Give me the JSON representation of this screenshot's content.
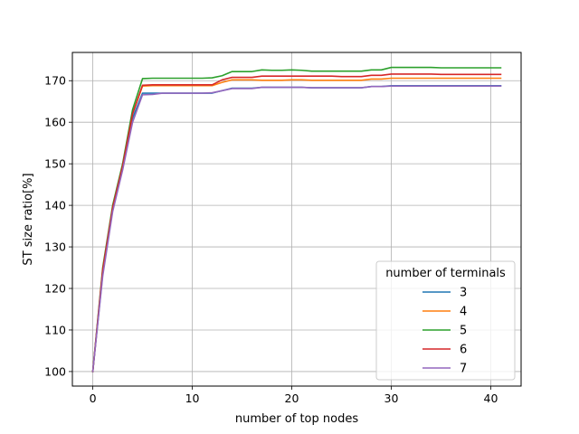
{
  "chart_data": {
    "type": "line",
    "xlabel": "number of top nodes",
    "ylabel": "ST size ratio[%]",
    "xlim": [
      -2.05,
      43.05
    ],
    "ylim": [
      96.5,
      176.8
    ],
    "xticks": [
      0,
      10,
      20,
      30,
      40
    ],
    "yticks": [
      100,
      110,
      120,
      130,
      140,
      150,
      160,
      170
    ],
    "grid": true,
    "legend": {
      "title": "number of terminals",
      "placement": "lower-right"
    },
    "series": [
      {
        "name": "3",
        "color": "#1f77b4",
        "points": [
          [
            0,
            100
          ],
          [
            1,
            123.5
          ],
          [
            2,
            139
          ],
          [
            3,
            149
          ],
          [
            4,
            161
          ],
          [
            5,
            167
          ],
          [
            6,
            167
          ],
          [
            7,
            167
          ],
          [
            8,
            167
          ],
          [
            9,
            167
          ],
          [
            10,
            167
          ],
          [
            11,
            167
          ],
          [
            12,
            167
          ],
          [
            13,
            167.6
          ],
          [
            14,
            168.2
          ],
          [
            15,
            168.2
          ],
          [
            16,
            168.2
          ],
          [
            17,
            168.4
          ],
          [
            18,
            168.4
          ],
          [
            19,
            168.4
          ],
          [
            20,
            168.4
          ],
          [
            21,
            168.4
          ],
          [
            22,
            168.3
          ],
          [
            23,
            168.3
          ],
          [
            24,
            168.3
          ],
          [
            25,
            168.3
          ],
          [
            26,
            168.3
          ],
          [
            27,
            168.3
          ],
          [
            28,
            168.6
          ],
          [
            29,
            168.6
          ],
          [
            30,
            168.8
          ],
          [
            31,
            168.8
          ],
          [
            32,
            168.8
          ],
          [
            33,
            168.8
          ],
          [
            34,
            168.8
          ],
          [
            35,
            168.8
          ],
          [
            36,
            168.8
          ],
          [
            37,
            168.8
          ],
          [
            38,
            168.8
          ],
          [
            39,
            168.8
          ],
          [
            40,
            168.8
          ],
          [
            41,
            168.8
          ]
        ]
      },
      {
        "name": "4",
        "color": "#ff7f0e",
        "points": [
          [
            0,
            100
          ],
          [
            1,
            124
          ],
          [
            2,
            139.5
          ],
          [
            3,
            149.5
          ],
          [
            4,
            162
          ],
          [
            5,
            168.7
          ],
          [
            6,
            168.8
          ],
          [
            7,
            168.8
          ],
          [
            8,
            168.8
          ],
          [
            9,
            168.8
          ],
          [
            10,
            168.8
          ],
          [
            11,
            168.8
          ],
          [
            12,
            168.8
          ],
          [
            13,
            169.6
          ],
          [
            14,
            170.2
          ],
          [
            15,
            170.2
          ],
          [
            16,
            170.2
          ],
          [
            17,
            170.1
          ],
          [
            18,
            170.1
          ],
          [
            19,
            170.1
          ],
          [
            20,
            170.2
          ],
          [
            21,
            170.2
          ],
          [
            22,
            170.1
          ],
          [
            23,
            170.1
          ],
          [
            24,
            170.1
          ],
          [
            25,
            170.1
          ],
          [
            26,
            170.1
          ],
          [
            27,
            170.1
          ],
          [
            28,
            170.4
          ],
          [
            29,
            170.4
          ],
          [
            30,
            170.6
          ],
          [
            31,
            170.6
          ],
          [
            32,
            170.6
          ],
          [
            33,
            170.6
          ],
          [
            34,
            170.6
          ],
          [
            35,
            170.6
          ],
          [
            36,
            170.6
          ],
          [
            37,
            170.6
          ],
          [
            38,
            170.6
          ],
          [
            39,
            170.6
          ],
          [
            40,
            170.6
          ],
          [
            41,
            170.6
          ]
        ]
      },
      {
        "name": "5",
        "color": "#2ca02c",
        "points": [
          [
            0,
            100
          ],
          [
            1,
            125
          ],
          [
            2,
            140
          ],
          [
            3,
            150
          ],
          [
            4,
            163
          ],
          [
            5,
            170.5
          ],
          [
            6,
            170.6
          ],
          [
            7,
            170.6
          ],
          [
            8,
            170.6
          ],
          [
            9,
            170.6
          ],
          [
            10,
            170.6
          ],
          [
            11,
            170.6
          ],
          [
            12,
            170.7
          ],
          [
            13,
            171.2
          ],
          [
            14,
            172.2
          ],
          [
            15,
            172.2
          ],
          [
            16,
            172.2
          ],
          [
            17,
            172.6
          ],
          [
            18,
            172.5
          ],
          [
            19,
            172.5
          ],
          [
            20,
            172.6
          ],
          [
            21,
            172.5
          ],
          [
            22,
            172.3
          ],
          [
            23,
            172.3
          ],
          [
            24,
            172.3
          ],
          [
            25,
            172.3
          ],
          [
            26,
            172.3
          ],
          [
            27,
            172.3
          ],
          [
            28,
            172.6
          ],
          [
            29,
            172.6
          ],
          [
            30,
            173.2
          ],
          [
            31,
            173.2
          ],
          [
            32,
            173.2
          ],
          [
            33,
            173.2
          ],
          [
            34,
            173.2
          ],
          [
            35,
            173.1
          ],
          [
            36,
            173.1
          ],
          [
            37,
            173.1
          ],
          [
            38,
            173.1
          ],
          [
            39,
            173.1
          ],
          [
            40,
            173.1
          ],
          [
            41,
            173.1
          ]
        ]
      },
      {
        "name": "6",
        "color": "#d62728",
        "points": [
          [
            0,
            100
          ],
          [
            1,
            124.5
          ],
          [
            2,
            139.5
          ],
          [
            3,
            149.5
          ],
          [
            4,
            162
          ],
          [
            5,
            168.9
          ],
          [
            6,
            169
          ],
          [
            7,
            169
          ],
          [
            8,
            169
          ],
          [
            9,
            169
          ],
          [
            10,
            169
          ],
          [
            11,
            169
          ],
          [
            12,
            169
          ],
          [
            13,
            170.2
          ],
          [
            14,
            170.8
          ],
          [
            15,
            170.8
          ],
          [
            16,
            170.8
          ],
          [
            17,
            171.1
          ],
          [
            18,
            171.1
          ],
          [
            19,
            171.1
          ],
          [
            20,
            171.1
          ],
          [
            21,
            171.1
          ],
          [
            22,
            171.1
          ],
          [
            23,
            171.1
          ],
          [
            24,
            171.1
          ],
          [
            25,
            171
          ],
          [
            26,
            171
          ],
          [
            27,
            171
          ],
          [
            28,
            171.3
          ],
          [
            29,
            171.3
          ],
          [
            30,
            171.6
          ],
          [
            31,
            171.6
          ],
          [
            32,
            171.6
          ],
          [
            33,
            171.6
          ],
          [
            34,
            171.6
          ],
          [
            35,
            171.5
          ],
          [
            36,
            171.5
          ],
          [
            37,
            171.5
          ],
          [
            38,
            171.5
          ],
          [
            39,
            171.5
          ],
          [
            40,
            171.5
          ],
          [
            41,
            171.5
          ]
        ]
      },
      {
        "name": "7",
        "color": "#9467bd",
        "points": [
          [
            0,
            100
          ],
          [
            1,
            123
          ],
          [
            2,
            138.5
          ],
          [
            3,
            148.5
          ],
          [
            4,
            160
          ],
          [
            5,
            166.6
          ],
          [
            6,
            166.7
          ],
          [
            7,
            167
          ],
          [
            8,
            167
          ],
          [
            9,
            167
          ],
          [
            10,
            167
          ],
          [
            11,
            167
          ],
          [
            12,
            167.1
          ],
          [
            13,
            167.6
          ],
          [
            14,
            168.1
          ],
          [
            15,
            168.1
          ],
          [
            16,
            168.1
          ],
          [
            17,
            168.4
          ],
          [
            18,
            168.4
          ],
          [
            19,
            168.4
          ],
          [
            20,
            168.4
          ],
          [
            21,
            168.4
          ],
          [
            22,
            168.3
          ],
          [
            23,
            168.3
          ],
          [
            24,
            168.3
          ],
          [
            25,
            168.3
          ],
          [
            26,
            168.3
          ],
          [
            27,
            168.3
          ],
          [
            28,
            168.6
          ],
          [
            29,
            168.6
          ],
          [
            30,
            168.7
          ],
          [
            31,
            168.7
          ],
          [
            32,
            168.7
          ],
          [
            33,
            168.7
          ],
          [
            34,
            168.7
          ],
          [
            35,
            168.7
          ],
          [
            36,
            168.7
          ],
          [
            37,
            168.7
          ],
          [
            38,
            168.7
          ],
          [
            39,
            168.7
          ],
          [
            40,
            168.7
          ],
          [
            41,
            168.7
          ]
        ]
      }
    ]
  }
}
